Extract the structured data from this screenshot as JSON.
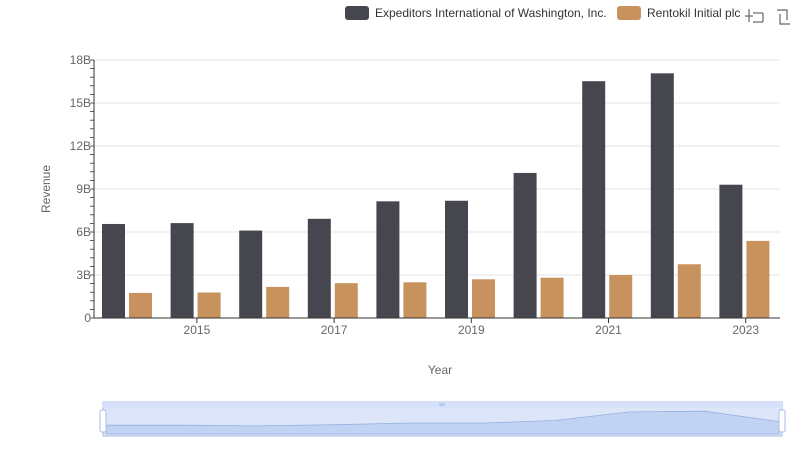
{
  "toolbar": {
    "icons": [
      "zoom-icon",
      "restore-icon"
    ]
  },
  "colors": {
    "series1": "#46464f",
    "series2": "#c8925e",
    "grid": "#e6e6e6",
    "axis": "#333333",
    "slider_fill": "#d6e2fb",
    "slider_border": "#a9bde6"
  },
  "chart_data": {
    "type": "bar",
    "xlabel": "Year",
    "ylabel": "Revenue",
    "ylim": [
      0,
      18000000000
    ],
    "yticks": [
      "0",
      "3B",
      "6B",
      "9B",
      "12B",
      "15B",
      "18B"
    ],
    "categories": [
      "2014",
      "2015",
      "2016",
      "2017",
      "2018",
      "2019",
      "2020",
      "2021",
      "2022",
      "2023"
    ],
    "xtick_labels": [
      "2015",
      "2017",
      "2019",
      "2021",
      "2023"
    ],
    "legend_position": "top-right",
    "series": [
      {
        "name": "Expeditors International of Washington, Inc.",
        "values": [
          6560000000,
          6620000000,
          6100000000,
          6920000000,
          8140000000,
          8180000000,
          10120000000,
          16520000000,
          17070000000,
          9300000000
        ]
      },
      {
        "name": "Rentokil Initial plc",
        "values": [
          1750000000,
          1780000000,
          2170000000,
          2430000000,
          2490000000,
          2700000000,
          2810000000,
          3000000000,
          3750000000,
          5380000000
        ]
      }
    ]
  }
}
